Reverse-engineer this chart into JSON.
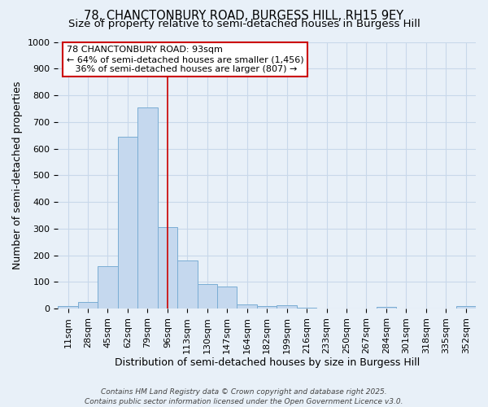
{
  "title": "78, CHANCTONBURY ROAD, BURGESS HILL, RH15 9EY",
  "subtitle": "Size of property relative to semi-detached houses in Burgess Hill",
  "xlabel": "Distribution of semi-detached houses by size in Burgess Hill",
  "ylabel": "Number of semi-detached properties",
  "bin_labels": [
    "11sqm",
    "28sqm",
    "45sqm",
    "62sqm",
    "79sqm",
    "96sqm",
    "113sqm",
    "130sqm",
    "147sqm",
    "164sqm",
    "182sqm",
    "199sqm",
    "216sqm",
    "233sqm",
    "250sqm",
    "267sqm",
    "284sqm",
    "301sqm",
    "318sqm",
    "335sqm",
    "352sqm"
  ],
  "bar_values": [
    8,
    25,
    160,
    645,
    755,
    305,
    180,
    93,
    83,
    15,
    10,
    13,
    4,
    0,
    0,
    0,
    5,
    0,
    0,
    0,
    8
  ],
  "bar_color": "#c5d8ee",
  "bar_edge_color": "#7aadd4",
  "grid_color": "#c8d8ea",
  "background_color": "#e8f0f8",
  "vline_bin_index": 5,
  "vline_color": "#cc0000",
  "annotation_line1": "78 CHANCTONBURY ROAD: 93sqm",
  "annotation_line2": "← 64% of semi-detached houses are smaller (1,456)",
  "annotation_line3": "   36% of semi-detached houses are larger (807) →",
  "annotation_box_color": "#ffffff",
  "annotation_box_edge_color": "#cc0000",
  "footer_text": "Contains HM Land Registry data © Crown copyright and database right 2025.\nContains public sector information licensed under the Open Government Licence v3.0.",
  "ylim": [
    0,
    1000
  ],
  "yticks": [
    0,
    100,
    200,
    300,
    400,
    500,
    600,
    700,
    800,
    900,
    1000
  ],
  "title_fontsize": 10.5,
  "subtitle_fontsize": 9.5,
  "axis_label_fontsize": 9,
  "tick_fontsize": 8,
  "annotation_fontsize": 8,
  "footer_fontsize": 6.5
}
